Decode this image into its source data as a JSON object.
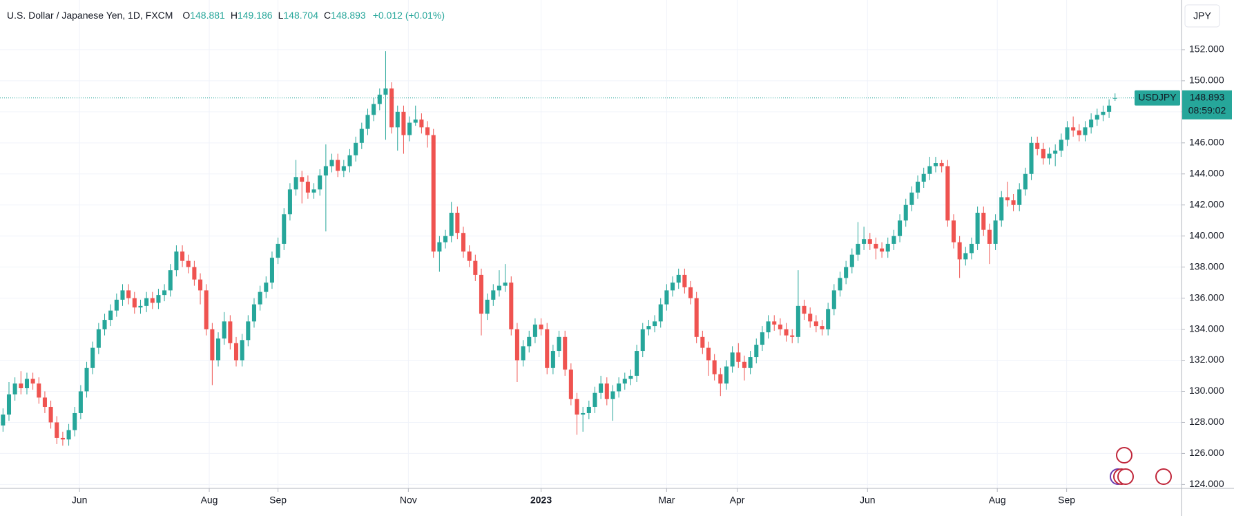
{
  "chart_data": {
    "type": "candlestick",
    "title": "U.S. Dollar / Japanese Yen, 1D, FXCM",
    "ohlc_letters": [
      "O",
      "H",
      "L",
      "C"
    ],
    "change": "+0.012 (+0.01%)",
    "symbol": "USDJPY",
    "countdown": "08:59:02",
    "currency": "JPY",
    "up_color": "#26a69a",
    "down_color": "#ef5350",
    "grid": true,
    "xlim": [
      -0.5,
      197
    ],
    "xticks": [
      {
        "value": 12.8,
        "label": "Jun"
      },
      {
        "value": 34.5,
        "label": "Aug"
      },
      {
        "value": 46,
        "label": "Sep"
      },
      {
        "value": 67.8,
        "label": "Nov"
      },
      {
        "value": 90,
        "label": "2023"
      },
      {
        "value": 111,
        "label": "Mar"
      },
      {
        "value": 122.8,
        "label": "Apr"
      },
      {
        "value": 144.6,
        "label": "Jun"
      },
      {
        "value": 166.3,
        "label": "Aug"
      },
      {
        "value": 177.9,
        "label": "Sep"
      }
    ],
    "ylim": [
      123.75,
      155.2
    ],
    "yticks": [
      {
        "value": 124,
        "label": "124.000"
      },
      {
        "value": 126,
        "label": "126.000"
      },
      {
        "value": 128,
        "label": "128.000"
      },
      {
        "value": 130,
        "label": "130.000"
      },
      {
        "value": 132,
        "label": "132.000"
      },
      {
        "value": 134,
        "label": "134.000"
      },
      {
        "value": 136,
        "label": "136.000"
      },
      {
        "value": 138,
        "label": "138.000"
      },
      {
        "value": 140,
        "label": "140.000"
      },
      {
        "value": 142,
        "label": "142.000"
      },
      {
        "value": 144,
        "label": "144.000"
      },
      {
        "value": 146,
        "label": "146.000"
      },
      {
        "value": 148,
        "label": "148.000"
      },
      {
        "value": 150,
        "label": "150.000"
      },
      {
        "value": 152,
        "label": "152.000"
      }
    ],
    "open": [
      127.8,
      128.5,
      129.8,
      130.5,
      130.2,
      130.8,
      130.5,
      129.6,
      129.0,
      128.0,
      127.0,
      126.9,
      127.5,
      128.6,
      130.0,
      131.5,
      132.8,
      134.0,
      134.6,
      135.2,
      135.9,
      136.5,
      136.0,
      135.4,
      135.5,
      136.0,
      135.7,
      136.2,
      136.5,
      137.8,
      139.0,
      138.4,
      138.0,
      137.2,
      136.5,
      134.0,
      132.0,
      133.4,
      134.5,
      133.1,
      132.0,
      133.3,
      134.5,
      135.6,
      136.4,
      137.0,
      138.6,
      139.5,
      141.4,
      143.0,
      143.8,
      143.5,
      142.8,
      143.0,
      143.9,
      144.5,
      144.9,
      144.2,
      144.5,
      145.2,
      146.0,
      146.9,
      147.8,
      148.5,
      149.1,
      149.5,
      147.0,
      148.0,
      146.5,
      147.3,
      147.5,
      147.0,
      146.5,
      139.0,
      139.6,
      140.0,
      141.5,
      140.2,
      139.0,
      138.4,
      137.5,
      135.0,
      135.9,
      136.5,
      136.8,
      137.0,
      134.0,
      132.0,
      132.9,
      133.5,
      134.3,
      134.0,
      131.5,
      132.6,
      133.5,
      131.4,
      129.5,
      128.5,
      128.6,
      129.0,
      129.9,
      130.5,
      129.5,
      130.0,
      130.5,
      130.8,
      131.0,
      132.6,
      134.0,
      134.2,
      134.5,
      135.6,
      136.5,
      137.0,
      137.5,
      136.7,
      136.0,
      133.5,
      132.8,
      132.0,
      131.1,
      130.5,
      131.6,
      132.5,
      131.9,
      131.5,
      132.2,
      133.0,
      133.8,
      134.5,
      134.3,
      134.0,
      133.6,
      133.5,
      135.5,
      135.0,
      134.5,
      134.2,
      134.0,
      135.3,
      136.5,
      137.3,
      138.0,
      138.8,
      139.5,
      139.8,
      139.5,
      139.2,
      139.0,
      139.5,
      140.0,
      141.0,
      142.0,
      142.8,
      143.5,
      144.0,
      144.5,
      144.7,
      144.5,
      141.0,
      139.6,
      138.5,
      138.9,
      139.5,
      141.5,
      140.4,
      139.5,
      141.0,
      142.5,
      142.3,
      142.0,
      143.0,
      144.0,
      146.0,
      145.6,
      145.0,
      145.3,
      145.5,
      146.2,
      147.0,
      146.8,
      146.5,
      147.0,
      147.5,
      147.8,
      148.0,
      148.881
    ],
    "high": [
      128.9,
      130.6,
      130.9,
      131.3,
      131.2,
      131.2,
      130.9,
      130.0,
      129.4,
      128.4,
      127.4,
      127.9,
      129.0,
      130.4,
      131.9,
      133.2,
      134.4,
      135.0,
      135.6,
      136.3,
      136.9,
      136.9,
      136.4,
      135.9,
      136.4,
      136.4,
      136.6,
      136.9,
      138.2,
      139.4,
      139.4,
      138.8,
      138.4,
      137.6,
      136.9,
      134.4,
      133.8,
      135.1,
      134.9,
      133.5,
      133.7,
      134.9,
      136.0,
      136.8,
      137.4,
      139.0,
      139.9,
      141.8,
      143.4,
      144.9,
      144.2,
      143.9,
      143.4,
      144.3,
      145.9,
      145.3,
      145.3,
      144.9,
      145.6,
      146.4,
      147.3,
      148.2,
      148.9,
      149.5,
      151.9,
      149.9,
      148.4,
      148.4,
      147.7,
      148.4,
      147.9,
      147.4,
      146.9,
      140.0,
      140.4,
      142.2,
      141.9,
      140.6,
      139.4,
      138.8,
      137.9,
      136.3,
      136.9,
      137.8,
      138.2,
      137.4,
      134.4,
      133.3,
      133.9,
      134.7,
      134.7,
      134.4,
      133.0,
      133.9,
      133.9,
      131.8,
      129.9,
      129.0,
      129.4,
      130.3,
      131.0,
      130.9,
      130.4,
      130.9,
      131.2,
      131.4,
      133.0,
      134.4,
      134.6,
      134.9,
      136.0,
      136.9,
      137.4,
      137.9,
      137.9,
      137.1,
      136.4,
      133.9,
      133.2,
      132.4,
      131.5,
      132.0,
      132.9,
      133.1,
      132.3,
      132.6,
      133.4,
      134.2,
      134.9,
      134.9,
      134.7,
      134.4,
      134.0,
      137.8,
      135.9,
      135.4,
      134.9,
      134.6,
      135.7,
      136.9,
      137.7,
      138.4,
      139.2,
      140.9,
      140.6,
      140.2,
      139.9,
      139.6,
      139.9,
      140.4,
      141.4,
      142.4,
      143.2,
      143.9,
      144.4,
      145.1,
      145.1,
      144.9,
      144.9,
      141.4,
      140.0,
      139.3,
      139.9,
      141.9,
      141.9,
      140.8,
      141.4,
      142.9,
      143.5,
      142.7,
      143.4,
      144.4,
      146.4,
      146.4,
      146.0,
      145.7,
      145.9,
      146.6,
      147.4,
      147.7,
      147.2,
      147.4,
      147.9,
      148.2,
      148.4,
      148.8,
      149.186
    ],
    "low": [
      127.4,
      128.1,
      129.4,
      129.8,
      129.8,
      130.1,
      129.2,
      128.6,
      127.6,
      126.6,
      126.5,
      126.5,
      127.1,
      128.2,
      129.6,
      131.1,
      132.4,
      133.6,
      134.2,
      134.8,
      135.5,
      135.6,
      135.0,
      135.0,
      135.1,
      135.3,
      135.3,
      135.8,
      136.1,
      137.4,
      138.0,
      137.6,
      136.8,
      135.6,
      133.6,
      130.4,
      131.6,
      133.0,
      132.7,
      131.6,
      131.6,
      132.9,
      134.1,
      135.2,
      136.0,
      136.6,
      138.2,
      139.1,
      141.0,
      142.6,
      142.1,
      142.4,
      142.4,
      142.6,
      140.3,
      144.1,
      143.8,
      143.8,
      144.1,
      144.8,
      145.6,
      146.5,
      147.4,
      148.1,
      146.2,
      146.6,
      145.5,
      145.3,
      146.1,
      147.1,
      146.6,
      145.7,
      138.6,
      137.7,
      139.2,
      139.6,
      139.8,
      138.6,
      138.0,
      137.1,
      133.6,
      134.6,
      135.5,
      136.1,
      136.4,
      133.6,
      130.6,
      131.6,
      132.5,
      133.1,
      133.6,
      131.1,
      131.1,
      132.2,
      131.0,
      129.1,
      127.2,
      127.4,
      128.2,
      128.6,
      129.5,
      129.1,
      128.1,
      129.6,
      130.1,
      130.4,
      130.6,
      132.2,
      133.6,
      133.8,
      134.1,
      135.2,
      136.1,
      136.6,
      136.3,
      135.6,
      133.1,
      132.4,
      131.0,
      130.7,
      129.7,
      130.1,
      131.2,
      131.5,
      130.7,
      131.1,
      131.8,
      132.6,
      133.4,
      133.9,
      133.6,
      133.2,
      133.1,
      133.1,
      134.6,
      134.1,
      133.8,
      133.6,
      133.6,
      134.9,
      136.1,
      136.9,
      137.6,
      138.4,
      139.1,
      139.1,
      138.5,
      138.6,
      138.6,
      139.1,
      139.6,
      140.6,
      141.6,
      142.4,
      143.1,
      143.6,
      144.1,
      144.1,
      140.6,
      139.2,
      137.3,
      138.1,
      138.5,
      139.1,
      140.0,
      138.2,
      139.1,
      140.6,
      141.9,
      141.6,
      141.6,
      142.6,
      143.6,
      145.2,
      144.6,
      144.6,
      144.5,
      145.1,
      145.8,
      146.4,
      146.1,
      146.1,
      146.6,
      147.1,
      147.4,
      147.6,
      148.704
    ],
    "close": [
      128.5,
      129.8,
      130.5,
      130.2,
      130.8,
      130.5,
      129.6,
      129.0,
      128.0,
      127.0,
      126.9,
      127.5,
      128.6,
      130.0,
      131.5,
      132.8,
      134.0,
      134.6,
      135.2,
      135.9,
      136.5,
      136.0,
      135.4,
      135.5,
      136.0,
      135.7,
      136.2,
      136.5,
      137.8,
      139.0,
      138.4,
      138.0,
      137.2,
      136.5,
      134.0,
      132.0,
      133.4,
      134.5,
      133.1,
      132.0,
      133.3,
      134.5,
      135.6,
      136.4,
      137.0,
      138.6,
      139.5,
      141.4,
      143.0,
      143.8,
      143.5,
      142.8,
      143.0,
      143.9,
      144.5,
      144.9,
      144.2,
      144.5,
      145.2,
      146.0,
      146.9,
      147.8,
      148.5,
      149.1,
      149.5,
      147.0,
      148.0,
      146.5,
      147.3,
      147.5,
      147.0,
      146.5,
      139.0,
      139.6,
      140.0,
      141.5,
      140.2,
      139.0,
      138.4,
      137.5,
      135.0,
      135.9,
      136.5,
      136.8,
      137.0,
      134.0,
      132.0,
      132.9,
      133.5,
      134.3,
      134.0,
      131.5,
      132.6,
      133.5,
      131.4,
      129.5,
      128.5,
      128.6,
      129.0,
      129.9,
      130.5,
      129.5,
      130.0,
      130.5,
      130.8,
      131.0,
      132.6,
      134.0,
      134.2,
      134.5,
      135.6,
      136.5,
      137.0,
      137.5,
      136.7,
      136.0,
      133.5,
      132.8,
      132.0,
      131.1,
      130.5,
      131.6,
      132.5,
      131.9,
      131.5,
      132.2,
      133.0,
      133.8,
      134.5,
      134.3,
      134.0,
      133.6,
      133.5,
      135.5,
      135.0,
      134.5,
      134.2,
      134.0,
      135.3,
      136.5,
      137.3,
      138.0,
      138.8,
      139.5,
      139.8,
      139.5,
      139.2,
      139.0,
      139.5,
      140.0,
      141.0,
      142.0,
      142.8,
      143.5,
      144.0,
      144.5,
      144.7,
      144.5,
      141.0,
      139.6,
      138.5,
      138.9,
      139.5,
      141.5,
      140.4,
      139.5,
      141.0,
      142.5,
      142.3,
      142.0,
      143.0,
      144.0,
      146.0,
      145.6,
      145.0,
      145.3,
      145.5,
      146.2,
      147.0,
      146.8,
      146.5,
      147.0,
      147.5,
      147.8,
      148.0,
      148.4,
      148.893
    ]
  }
}
